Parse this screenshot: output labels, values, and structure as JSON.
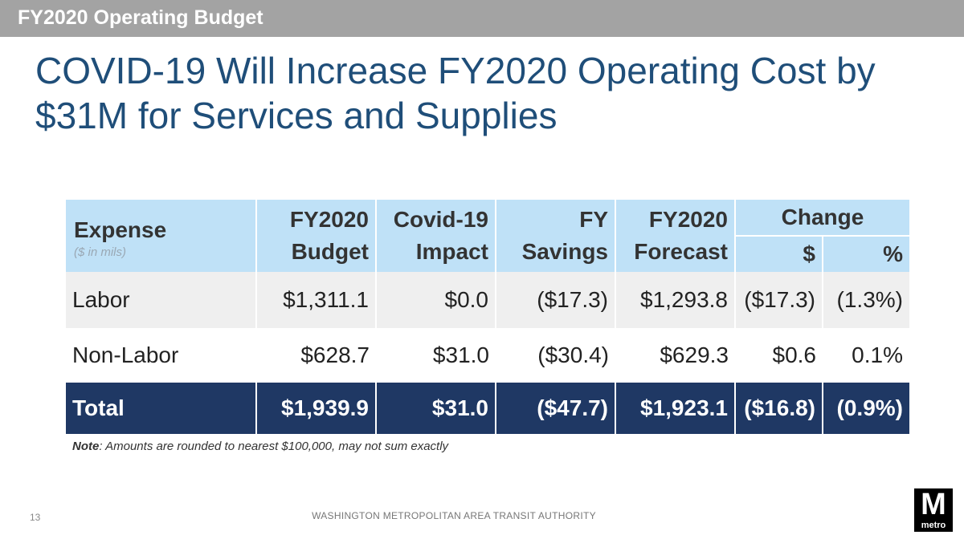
{
  "header": {
    "section": "FY2020 Operating Budget"
  },
  "title": "COVID-19 Will Increase FY2020 Operating Cost by $31M for Services and Supplies",
  "table": {
    "columns": {
      "expense": "Expense",
      "expense_sub": "($ in mils)",
      "budget": [
        "FY2020",
        "Budget"
      ],
      "impact": [
        "Covid-19",
        "Impact"
      ],
      "savings": [
        "FY",
        "Savings"
      ],
      "forecast": [
        "FY2020",
        "Forecast"
      ],
      "change": "Change",
      "change_dollar": "$",
      "change_pct": "%"
    },
    "rows": [
      {
        "label": "Labor",
        "budget": "$1,311.1",
        "impact": "$0.0",
        "savings": "($17.3)",
        "forecast": "$1,293.8",
        "change_dollar": "($17.3)",
        "change_pct": "(1.3%)"
      },
      {
        "label": "Non-Labor",
        "budget": "$628.7",
        "impact": "$31.0",
        "savings": "($30.4)",
        "forecast": "$629.3",
        "change_dollar": "$0.6",
        "change_pct": "0.1%"
      }
    ],
    "total": {
      "label": "Total",
      "budget": "$1,939.9",
      "impact": "$31.0",
      "savings": "($47.7)",
      "forecast": "$1,923.1",
      "change_dollar": "($16.8)",
      "change_pct": "(0.9%)"
    }
  },
  "note": {
    "prefix": "Note",
    "text": ": Amounts are rounded to nearest $100,000, may not sum exactly"
  },
  "footer": {
    "page": "13",
    "org": "WASHINGTON METROPOLITAN AREA TRANSIT AUTHORITY"
  },
  "logo": {
    "letter": "M",
    "word": "metro"
  },
  "colors": {
    "header_bar": "#a3a3a3",
    "title": "#1f4e79",
    "table_header": "#bfe1f7",
    "total_row": "#1f3864",
    "alt_row": "#efefef"
  }
}
